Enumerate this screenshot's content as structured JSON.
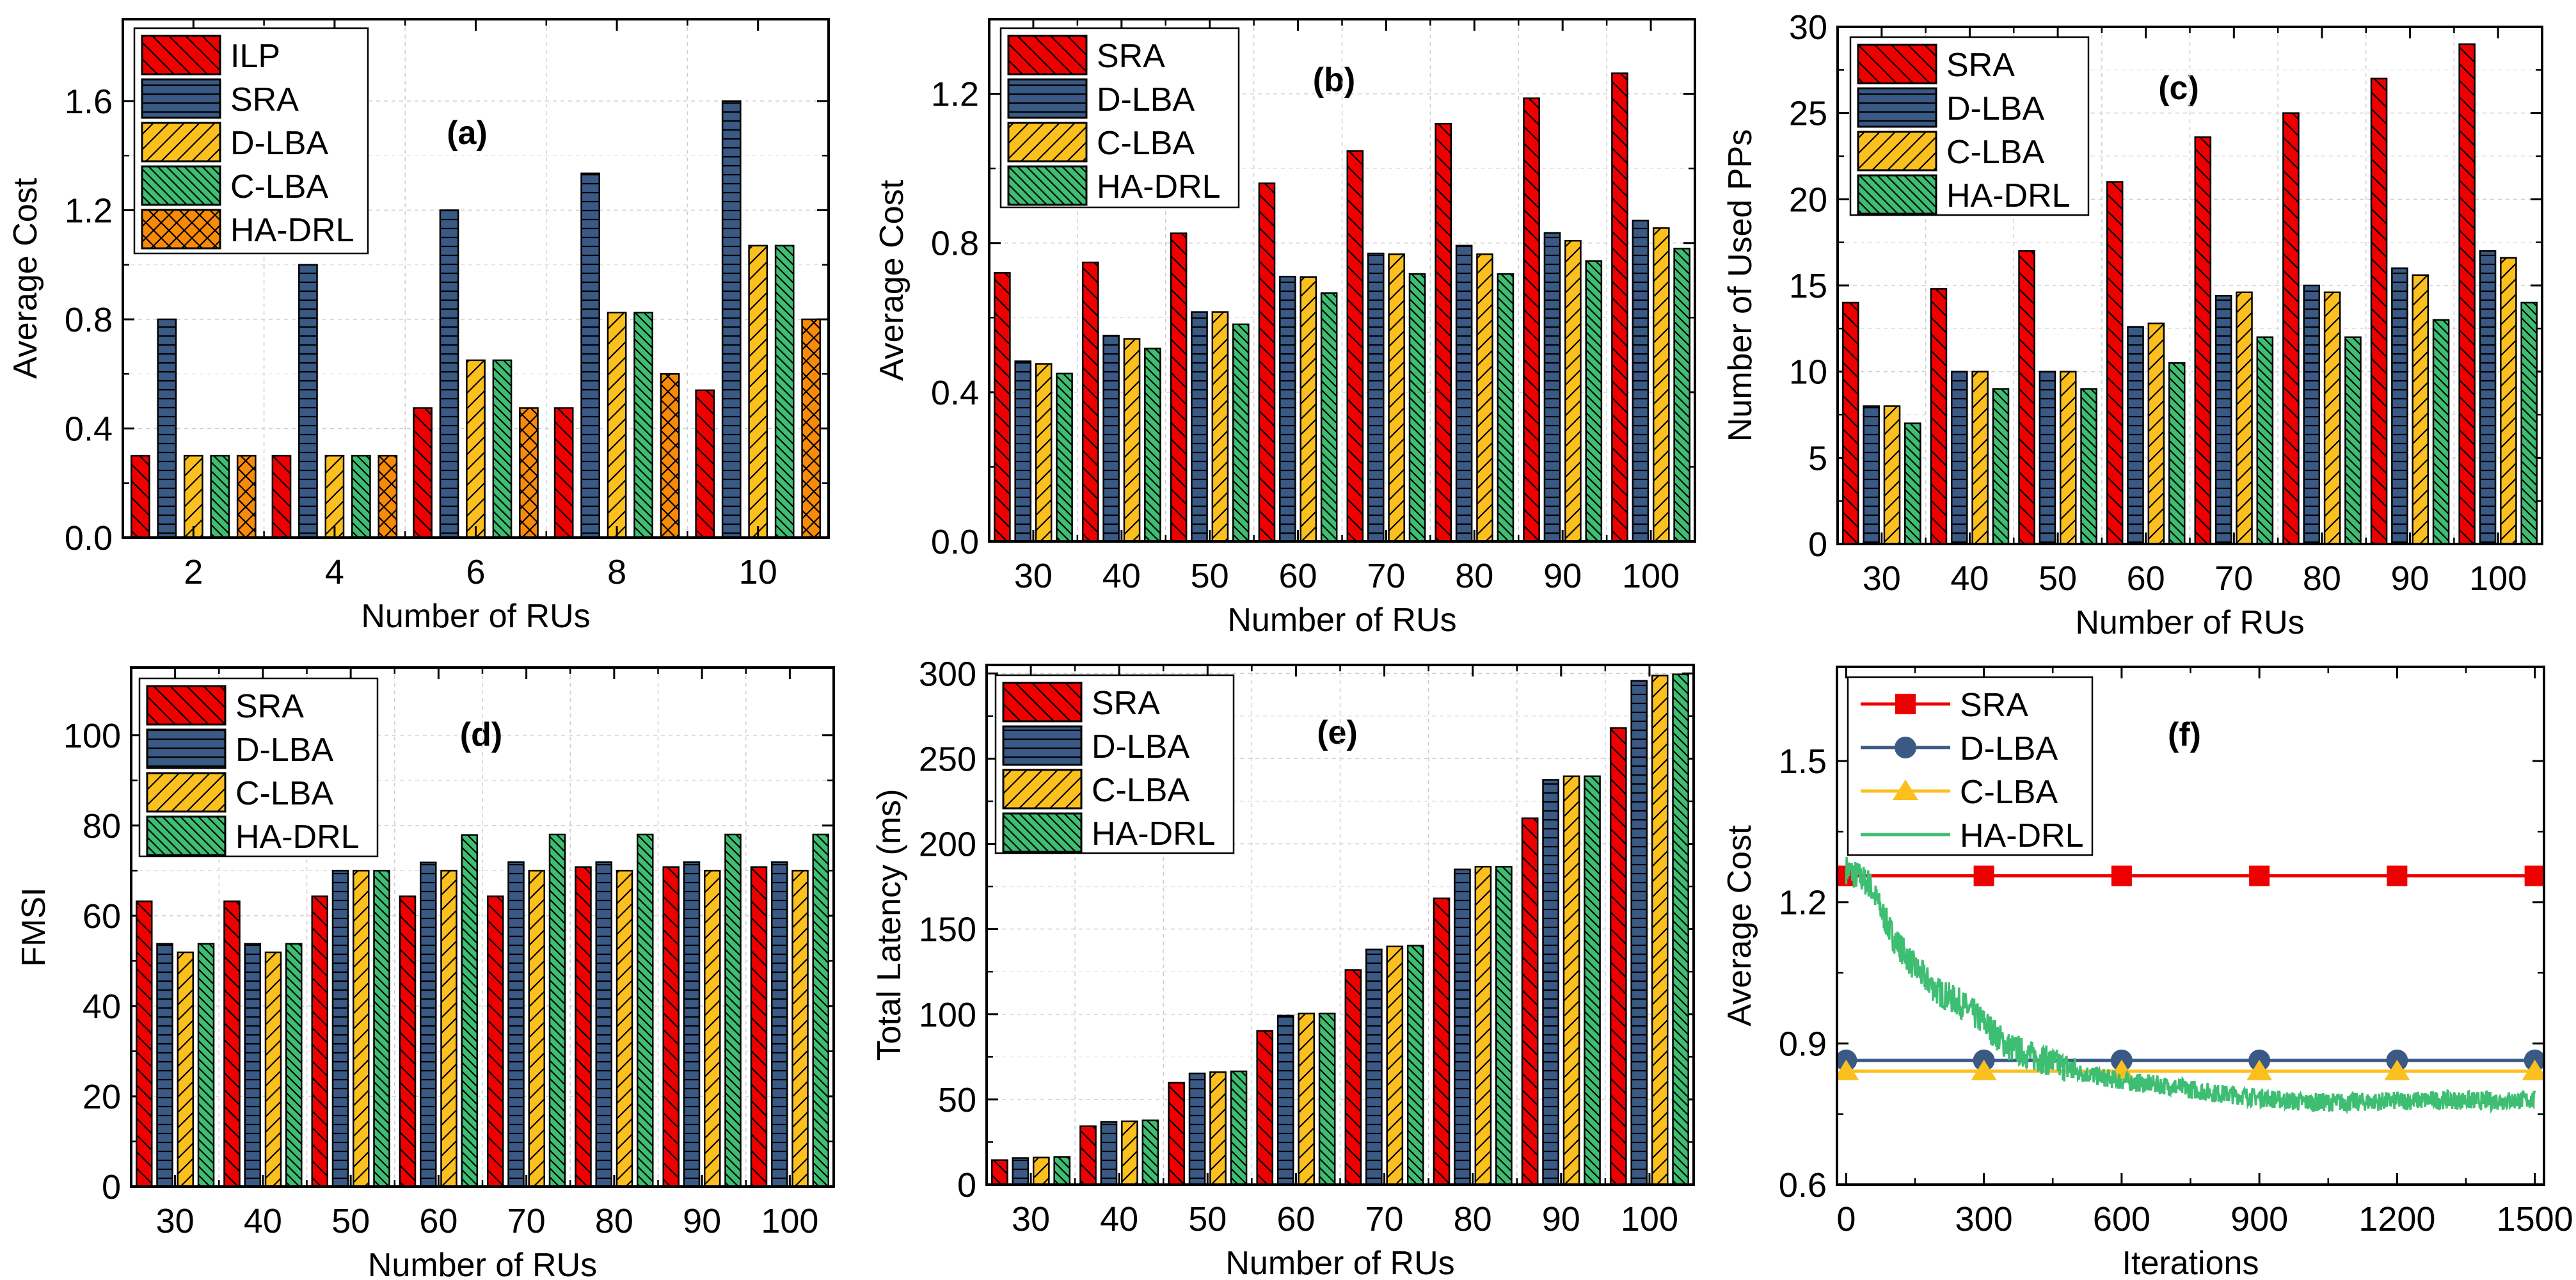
{
  "figure": {
    "colors": {
      "red": "#EE0000",
      "navy": "#3A5A85",
      "yellow": "#FBBF1E",
      "green": "#3DBE72",
      "orange": "#F88A0A"
    }
  },
  "chart_data": [
    {
      "id": "a",
      "type": "bar",
      "panel_label": "(a)",
      "title": "",
      "xlabel": "Number of RUs",
      "ylabel": "Average Cost",
      "categories": [
        "2",
        "4",
        "6",
        "8",
        "10"
      ],
      "ylim": [
        0,
        1.9
      ],
      "yticks": [
        0.0,
        0.4,
        0.8,
        1.2,
        1.6
      ],
      "ytick_labels": [
        "0.0",
        "0.4",
        "0.8",
        "1.2",
        "1.6"
      ],
      "grid": true,
      "legend_position": "top-left",
      "series": [
        {
          "name": "ILP",
          "color": "#EE0000",
          "pattern": "wide-back-diagonal",
          "values": [
            0.3,
            0.3,
            0.475,
            0.475,
            0.54
          ]
        },
        {
          "name": "SRA",
          "color": "#3A5A85",
          "pattern": "horizontal",
          "values": [
            0.8,
            1.0,
            1.2,
            1.335,
            1.6
          ]
        },
        {
          "name": "D-LBA",
          "color": "#FBBF1E",
          "pattern": "forward-diagonal",
          "values": [
            0.3,
            0.3,
            0.65,
            0.825,
            1.07
          ]
        },
        {
          "name": "C-LBA",
          "color": "#3DBE72",
          "pattern": "dense-back-diagonal",
          "values": [
            0.3,
            0.3,
            0.65,
            0.825,
            1.07
          ]
        },
        {
          "name": "HA-DRL",
          "color": "#F88A0A",
          "pattern": "crosshatch",
          "values": [
            0.3,
            0.3,
            0.475,
            0.6,
            0.8
          ]
        }
      ]
    },
    {
      "id": "b",
      "type": "bar",
      "panel_label": "(b)",
      "title": "",
      "xlabel": "Number of RUs",
      "ylabel": "Average Cost",
      "categories": [
        "30",
        "40",
        "50",
        "60",
        "70",
        "80",
        "90",
        "100"
      ],
      "ylim": [
        0,
        1.4
      ],
      "yticks": [
        0.0,
        0.4,
        0.8,
        1.2
      ],
      "ytick_labels": [
        "0.0",
        "0.4",
        "0.8",
        "1.2"
      ],
      "grid": true,
      "legend_position": "top-left",
      "series": [
        {
          "name": "SRA",
          "color": "#EE0000",
          "pattern": "wide-back-diagonal",
          "values": [
            0.72,
            0.748,
            0.826,
            0.96,
            1.047,
            1.12,
            1.188,
            1.255
          ]
        },
        {
          "name": "D-LBA",
          "color": "#3A5A85",
          "pattern": "horizontal",
          "values": [
            0.483,
            0.552,
            0.615,
            0.71,
            0.772,
            0.793,
            0.827,
            0.86
          ]
        },
        {
          "name": "C-LBA",
          "color": "#FBBF1E",
          "pattern": "forward-diagonal",
          "values": [
            0.476,
            0.543,
            0.615,
            0.709,
            0.77,
            0.77,
            0.806,
            0.84
          ]
        },
        {
          "name": "HA-DRL",
          "color": "#3DBE72",
          "pattern": "dense-back-diagonal",
          "values": [
            0.45,
            0.517,
            0.582,
            0.666,
            0.717,
            0.717,
            0.752,
            0.785
          ]
        }
      ]
    },
    {
      "id": "c",
      "type": "bar",
      "panel_label": "(c)",
      "title": "",
      "xlabel": "Number of RUs",
      "ylabel": "Number of Used PPs",
      "categories": [
        "30",
        "40",
        "50",
        "60",
        "70",
        "80",
        "90",
        "100"
      ],
      "ylim": [
        0,
        30
      ],
      "yticks": [
        0,
        5,
        10,
        15,
        20,
        25,
        30
      ],
      "ytick_labels": [
        "0",
        "5",
        "10",
        "15",
        "20",
        "25",
        "30"
      ],
      "grid": true,
      "legend_position": "top-left",
      "series": [
        {
          "name": "SRA",
          "color": "#EE0000",
          "pattern": "wide-back-diagonal",
          "values": [
            14,
            14.8,
            17,
            21,
            23.6,
            25,
            27,
            29
          ]
        },
        {
          "name": "D-LBA",
          "color": "#3A5A85",
          "pattern": "horizontal",
          "values": [
            8,
            10,
            10,
            12.6,
            14.4,
            15,
            16,
            17
          ]
        },
        {
          "name": "C-LBA",
          "color": "#FBBF1E",
          "pattern": "forward-diagonal",
          "values": [
            8,
            10,
            10,
            12.8,
            14.6,
            14.6,
            15.6,
            16.6
          ]
        },
        {
          "name": "HA-DRL",
          "color": "#3DBE72",
          "pattern": "dense-back-diagonal",
          "values": [
            7,
            9,
            9,
            10.5,
            12,
            12,
            13,
            14
          ]
        }
      ]
    },
    {
      "id": "d",
      "type": "bar",
      "panel_label": "(d)",
      "title": "",
      "xlabel": "Number of RUs",
      "ylabel": "FMSI",
      "categories": [
        "30",
        "40",
        "50",
        "60",
        "70",
        "80",
        "90",
        "100"
      ],
      "ylim": [
        0,
        115
      ],
      "yticks": [
        0,
        20,
        40,
        60,
        80,
        100
      ],
      "ytick_labels": [
        "0",
        "20",
        "40",
        "60",
        "80",
        "100"
      ],
      "grid": true,
      "legend_position": "top-left",
      "series": [
        {
          "name": "SRA",
          "color": "#EE0000",
          "pattern": "wide-back-diagonal",
          "values": [
            63.2,
            63.2,
            64.3,
            64.3,
            64.3,
            70.8,
            70.8,
            70.8
          ]
        },
        {
          "name": "D-LBA",
          "color": "#3A5A85",
          "pattern": "horizontal",
          "values": [
            53.8,
            53.8,
            70,
            71.8,
            71.9,
            71.9,
            71.9,
            71.9
          ]
        },
        {
          "name": "C-LBA",
          "color": "#FBBF1E",
          "pattern": "forward-diagonal",
          "values": [
            51.9,
            51.9,
            70,
            70,
            70,
            70,
            70,
            70
          ]
        },
        {
          "name": "HA-DRL",
          "color": "#3DBE72",
          "pattern": "dense-back-diagonal",
          "values": [
            53.8,
            53.8,
            70,
            77.9,
            78,
            78,
            78,
            78
          ]
        }
      ]
    },
    {
      "id": "e",
      "type": "bar",
      "panel_label": "(e)",
      "title": "",
      "xlabel": "Number of RUs",
      "ylabel": "Total Latency (ms)",
      "categories": [
        "30",
        "40",
        "50",
        "60",
        "70",
        "80",
        "90",
        "100"
      ],
      "ylim": [
        0,
        305
      ],
      "yticks": [
        0,
        50,
        100,
        150,
        200,
        250,
        300
      ],
      "ytick_labels": [
        "0",
        "50",
        "100",
        "150",
        "200",
        "250",
        "300"
      ],
      "grid": true,
      "legend_position": "top-left",
      "series": [
        {
          "name": "SRA",
          "color": "#EE0000",
          "pattern": "wide-back-diagonal",
          "values": [
            14.4,
            34.3,
            59.8,
            90.3,
            126,
            168,
            215,
            268
          ]
        },
        {
          "name": "D-LBA",
          "color": "#3A5A85",
          "pattern": "horizontal",
          "values": [
            15.6,
            36.8,
            65.3,
            99.2,
            138,
            185,
            237.6,
            295.7
          ]
        },
        {
          "name": "C-LBA",
          "color": "#FBBF1E",
          "pattern": "forward-diagonal",
          "values": [
            15.9,
            37.2,
            66,
            100.4,
            139.8,
            186.6,
            239.7,
            298.8
          ]
        },
        {
          "name": "HA-DRL",
          "color": "#3DBE72",
          "pattern": "dense-back-diagonal",
          "values": [
            16.3,
            37.7,
            66.5,
            100.4,
            140.3,
            186.6,
            239.7,
            299.5
          ]
        }
      ]
    },
    {
      "id": "f",
      "type": "line",
      "panel_label": "(f)",
      "title": "",
      "xlabel": "Iterations",
      "ylabel": "Average Cost",
      "xlim": [
        -20,
        1520
      ],
      "ylim": [
        0.6,
        1.7
      ],
      "xticks": [
        0,
        300,
        600,
        900,
        1200,
        1500
      ],
      "xtick_labels": [
        "0",
        "300",
        "600",
        "900",
        "1200",
        "1500"
      ],
      "yticks": [
        0.6,
        0.9,
        1.2,
        1.5
      ],
      "ytick_labels": [
        "0.6",
        "0.9",
        "1.2",
        "1.5"
      ],
      "grid": false,
      "legend_position": "top-left",
      "series": [
        {
          "name": "SRA",
          "color": "#EE0000",
          "marker": "square",
          "x": [
            0,
            300,
            600,
            900,
            1200,
            1500
          ],
          "values": [
            1.256,
            1.256,
            1.256,
            1.256,
            1.256,
            1.256
          ]
        },
        {
          "name": "D-LBA",
          "color": "#3A5A85",
          "marker": "circle",
          "x": [
            0,
            300,
            600,
            900,
            1200,
            1500
          ],
          "values": [
            0.864,
            0.864,
            0.864,
            0.864,
            0.864,
            0.864
          ]
        },
        {
          "name": "C-LBA",
          "color": "#FBBF1E",
          "marker": "triangle",
          "x": [
            0,
            300,
            600,
            900,
            1200,
            1500
          ],
          "values": [
            0.841,
            0.841,
            0.841,
            0.841,
            0.841,
            0.841
          ]
        },
        {
          "name": "HA-DRL",
          "color": "#3DBE72",
          "marker": "none",
          "noisy": true,
          "noise_amplitude": 0.02,
          "x": [
            0,
            50,
            100,
            150,
            200,
            250,
            300,
            350,
            400,
            450,
            500,
            600,
            700,
            800,
            900,
            1000,
            1100,
            1200,
            1300,
            1400,
            1500
          ],
          "values": [
            1.27,
            1.24,
            1.13,
            1.06,
            1.01,
            0.985,
            0.945,
            0.895,
            0.875,
            0.86,
            0.84,
            0.82,
            0.81,
            0.795,
            0.785,
            0.775,
            0.775,
            0.778,
            0.78,
            0.778,
            0.78
          ]
        }
      ]
    }
  ]
}
